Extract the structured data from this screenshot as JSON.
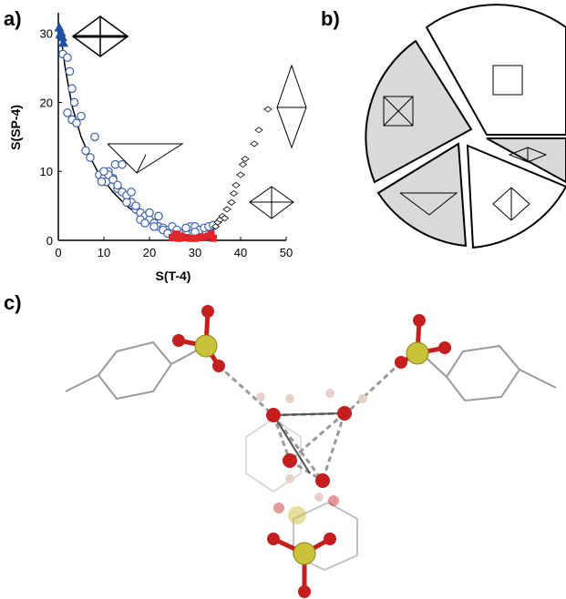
{
  "panel_labels": {
    "a": "a)",
    "b": "b)",
    "c": "c)"
  },
  "chart_data": {
    "type": "scatter",
    "xlabel": "S(T-4)",
    "ylabel": "S(SP-4)",
    "xlim": [
      0,
      50
    ],
    "ylim": [
      0,
      33
    ],
    "xticks": [
      "0",
      "10",
      "20",
      "30",
      "40",
      "50"
    ],
    "yticks": [
      "0",
      "10",
      "20",
      "30"
    ],
    "grid": false,
    "legend": "none",
    "path_curve": {
      "points": [
        [
          0.5,
          30
        ],
        [
          1.5,
          25
        ],
        [
          3,
          19.5
        ],
        [
          5,
          15
        ],
        [
          7,
          12
        ],
        [
          9,
          9.5
        ],
        [
          12,
          7
        ],
        [
          15,
          5
        ],
        [
          18,
          3.5
        ],
        [
          21,
          2.3
        ],
        [
          24,
          1.3
        ],
        [
          27,
          0.6
        ],
        [
          30,
          0.3
        ],
        [
          32,
          0.6
        ],
        [
          34,
          1.5
        ],
        [
          35.5,
          2.8
        ]
      ]
    },
    "series": [
      {
        "marker": "triangle",
        "color": "#1f4fa0",
        "values": [
          [
            0.2,
            30.8
          ],
          [
            0.6,
            30.1
          ],
          [
            0.9,
            29.4
          ],
          [
            1.1,
            28.6
          ],
          [
            0.4,
            29.8
          ]
        ]
      },
      {
        "marker": "circle",
        "color": "#3a5fb0",
        "values": [
          [
            1,
            27
          ],
          [
            2,
            26.5
          ],
          [
            2.5,
            24.5
          ],
          [
            3,
            22
          ],
          [
            3.5,
            20
          ],
          [
            2,
            18.5
          ],
          [
            3,
            17.5
          ],
          [
            4,
            17
          ],
          [
            5,
            18
          ],
          [
            6,
            13
          ],
          [
            7,
            12
          ],
          [
            8,
            15
          ],
          [
            9,
            9.5
          ],
          [
            10,
            9
          ],
          [
            10.5,
            8.5
          ],
          [
            11,
            10
          ],
          [
            12,
            9
          ],
          [
            12.5,
            11
          ],
          [
            13,
            7.5
          ],
          [
            14,
            7
          ],
          [
            15,
            6.5
          ],
          [
            16,
            5.5
          ],
          [
            17,
            4.5
          ],
          [
            18,
            4
          ],
          [
            19,
            3.5
          ],
          [
            20,
            3
          ],
          [
            21,
            2.5
          ],
          [
            22,
            2
          ],
          [
            23,
            1.8
          ],
          [
            24,
            1.5
          ],
          [
            25,
            1.3
          ],
          [
            26,
            1.2
          ],
          [
            27,
            1
          ],
          [
            28,
            1
          ],
          [
            29,
            2
          ],
          [
            30,
            2
          ],
          [
            31,
            1.5
          ],
          [
            32,
            1.8
          ],
          [
            33,
            2
          ],
          [
            34,
            2.2
          ],
          [
            11,
            9.5
          ],
          [
            12,
            8.8
          ],
          [
            14,
            11
          ],
          [
            15,
            5.5
          ],
          [
            16,
            7
          ],
          [
            18,
            3
          ],
          [
            19,
            2.5
          ],
          [
            20,
            4
          ],
          [
            22,
            3.5
          ],
          [
            23,
            1.5
          ],
          [
            9.5,
            8.5
          ],
          [
            10,
            10
          ],
          [
            13,
            8
          ],
          [
            17,
            5
          ],
          [
            21,
            2
          ],
          [
            24,
            1
          ],
          [
            25,
            2
          ],
          [
            26,
            1.5
          ],
          [
            28,
            1.8
          ],
          [
            30,
            1.2
          ]
        ]
      },
      {
        "marker": "square",
        "color": "#e0262b",
        "values": [
          [
            25,
            0.4
          ],
          [
            25.8,
            0.9
          ],
          [
            26.5,
            0.3
          ],
          [
            27,
            0.6
          ],
          [
            28,
            0.4
          ],
          [
            29,
            0.3
          ],
          [
            30,
            0.3
          ],
          [
            31,
            0.4
          ],
          [
            32,
            0.5
          ],
          [
            33,
            0.6
          ],
          [
            33.5,
            0.9
          ],
          [
            34,
            0.3
          ]
        ]
      },
      {
        "marker": "diamond",
        "color": "#000000",
        "values": [
          [
            34.5,
            2
          ],
          [
            35,
            2.6
          ],
          [
            35.5,
            3
          ],
          [
            36,
            3.5
          ],
          [
            36.5,
            3.2
          ],
          [
            37,
            4.5
          ],
          [
            38,
            5.5
          ],
          [
            38.5,
            6.8
          ],
          [
            39,
            8
          ],
          [
            40,
            9.5
          ],
          [
            40.5,
            11
          ],
          [
            41,
            11.8
          ],
          [
            43,
            14
          ],
          [
            44,
            16
          ],
          [
            46,
            19
          ]
        ]
      }
    ]
  },
  "pie": {
    "type": "pie",
    "slices": [
      {
        "shape": "square-planar",
        "fill": "#ffffff"
      },
      {
        "shape": "trigonal-bipyramid",
        "fill": "#d9d9d9"
      },
      {
        "shape": "tetrahedron",
        "fill": "#ffffff"
      },
      {
        "shape": "seesaw",
        "fill": "#d9d9d9"
      },
      {
        "shape": "butterfly",
        "fill": "#d9d9d9"
      }
    ]
  },
  "molecule": {
    "colors": {
      "oxygen": "#c41e1e",
      "sulfur": "#c8c338",
      "hydrogen": "#e8d0cc",
      "bond": "#888888"
    }
  }
}
